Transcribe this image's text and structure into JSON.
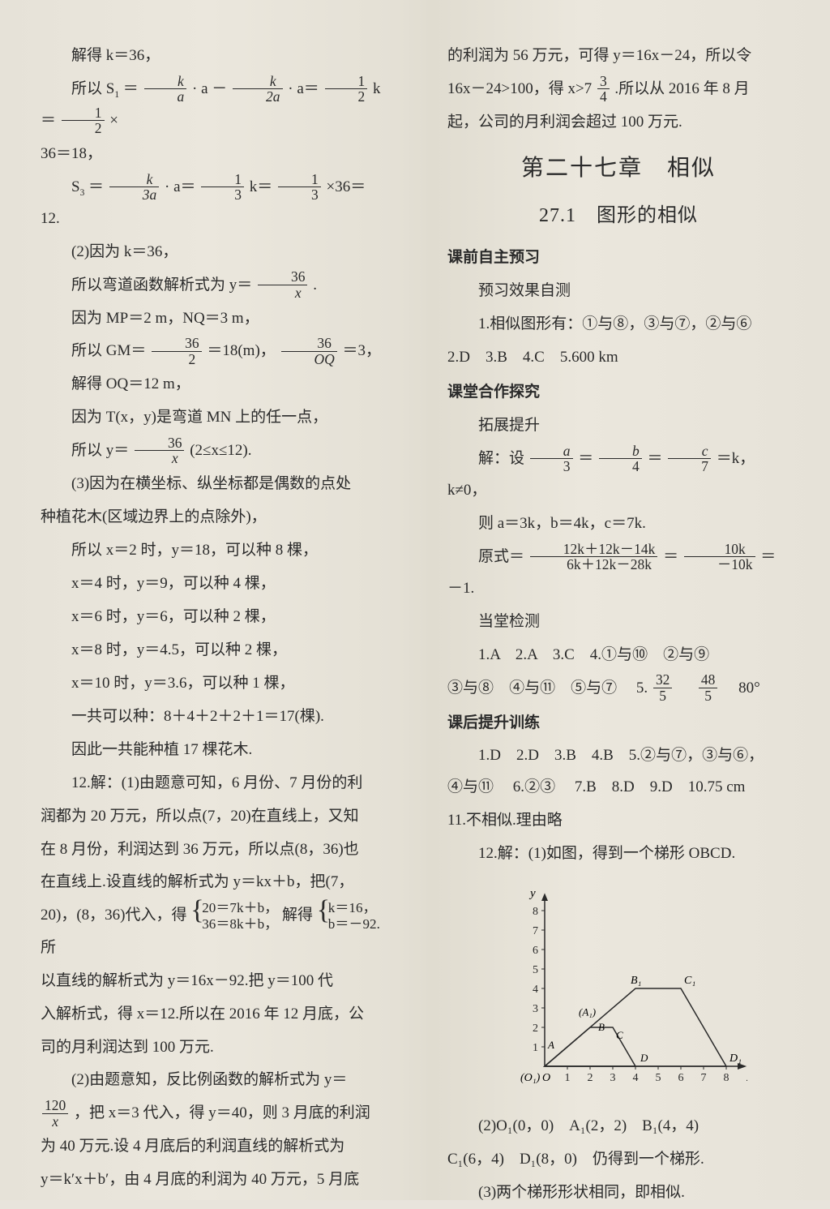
{
  "left": {
    "l1": "解得 k＝36，",
    "l2a": "所以 S",
    "l2b": "＝",
    "l2_f1n": "k",
    "l2_f1d": "a",
    "l2c": "· a －",
    "l2_f2n": "k",
    "l2_f2d": "2a",
    "l2d": "· a＝",
    "l2_f3n": "1",
    "l2_f3d": "2",
    "l2e": "k＝",
    "l2_f4n": "1",
    "l2_f4d": "2",
    "l2f": "×",
    "l3": "36＝18，",
    "l4a": "S",
    "l4b": "＝",
    "l4_f1n": "k",
    "l4_f1d": "3a",
    "l4c": "· a＝",
    "l4_f2n": "1",
    "l4_f2d": "3",
    "l4d": "k＝",
    "l4_f3n": "1",
    "l4_f3d": "3",
    "l4e": "×36＝12.",
    "l5": "(2)因为 k＝36，",
    "l6a": "所以弯道函数解析式为 y＝",
    "l6_fn": "36",
    "l6_fd": "x",
    "l6b": ".",
    "l7": "因为 MP＝2 m，NQ＝3 m，",
    "l8a": "所以 GM＝",
    "l8_f1n": "36",
    "l8_f1d": "2",
    "l8b": "＝18(m)，",
    "l8_f2n": "36",
    "l8_f2d": "OQ",
    "l8c": "＝3，",
    "l9": "解得 OQ＝12 m，",
    "l10": "因为 T(x，y)是弯道 MN 上的任一点，",
    "l11a": "所以 y＝",
    "l11_fn": "36",
    "l11_fd": "x",
    "l11b": "(2≤x≤12).",
    "l12": "(3)因为在横坐标、纵坐标都是偶数的点处",
    "l13": "种植花木(区域边界上的点除外)，",
    "l14": "所以 x＝2 时，y＝18，可以种 8 棵，",
    "l15": "x＝4 时，y＝9，可以种 4 棵，",
    "l16": "x＝6 时，y＝6，可以种 2 棵，",
    "l17": "x＝8 时，y＝4.5，可以种 2 棵，",
    "l18": "x＝10 时，y＝3.6，可以种 1 棵，",
    "l19": "一共可以种：8＋4＋2＋2＋1＝17(棵).",
    "l20": "因此一共能种植 17 棵花木.",
    "l21": "12.解：(1)由题意可知，6 月份、7 月份的利",
    "l22": "润都为 20 万元，所以点(7，20)在直线上，又知",
    "l23": "在 8 月份，利润达到 36 万元，所以点(8，36)也",
    "l24": "在直线上.设直线的解析式为 y＝kx＋b，把(7，",
    "l25a": "20)，(8，36)代入，得",
    "l25s1a": "20＝7k＋b，",
    "l25s1b": "36＝8k＋b，",
    "l25b": "解得",
    "l25s2a": "k＝16，",
    "l25s2b": "b＝－92.",
    "l25c": "所",
    "l26": "以直线的解析式为 y＝16x－92.把 y＝100 代",
    "l27": "入解析式，得 x＝12.所以在 2016 年 12 月底，公",
    "l28": "司的月利润达到 100 万元.",
    "l29": "(2)由题意知，反比例函数的解析式为 y＝",
    "l30_fn": "120",
    "l30_fd": "x",
    "l30a": "，把 x＝3 代入，得 y＝40，则 3 月底的利润",
    "l31": "为 40 万元.设 4 月底后的利润直线的解析式为",
    "l32": "y＝k′x＋b′，由 4 月底的利润为 40 万元，5 月底"
  },
  "right": {
    "r1": "的利润为 56 万元，可得 y＝16x－24，所以令",
    "r2a": "16x－24>100，得 x>7",
    "r2_fn": "3",
    "r2_fd": "4",
    "r2b": ".所以从 2016 年 8 月",
    "r3": "起，公司的月利润会超过 100 万元.",
    "chapter": "第二十七章　相似",
    "section": "27.1　图形的相似",
    "h1": "课前自主预习",
    "h1s": "预习效果自测",
    "r4a": "1.相似图形有：",
    "c1": "①",
    "r4b": "与",
    "c8": "⑧",
    "r4c": "，",
    "c3": "③",
    "r4d": "与",
    "c7": "⑦",
    "r4e": "，",
    "c2": "②",
    "r4f": "与",
    "c6": "⑥",
    "r5": "2.D　3.B　4.C　5.600 km",
    "h2": "课堂合作探究",
    "h2s": "拓展提升",
    "r6a": "解：设",
    "r6_f1n": "a",
    "r6_f1d": "3",
    "r6b": "＝",
    "r6_f2n": "b",
    "r6_f2d": "4",
    "r6c": "＝",
    "r6_f3n": "c",
    "r6_f3d": "7",
    "r6d": "＝k，k≠0，",
    "r7": "则 a＝3k，b＝4k，c＝7k.",
    "r8a": "原式＝",
    "r8_f1n": "12k＋12k－14k",
    "r8_f1d": "6k＋12k－28k",
    "r8b": "＝",
    "r8_f2n": "10k",
    "r8_f2d": "－10k",
    "r8c": "＝－1.",
    "h2s2": "当堂检测",
    "r9a": "1.A　2.A　3.C　4.",
    "r9c1": "①",
    "r9b": "与",
    "r9c10": "⑩",
    "r9sp": "　",
    "r9c2": "②",
    "r9c": "与",
    "r9c9": "⑨",
    "r10a": "",
    "r10c3": "③",
    "r10b": "与",
    "r10c8": "⑧",
    "r10sp": "　",
    "r10c4": "④",
    "r10c": "与",
    "r10c11": "⑪",
    "r10sp2": "　",
    "r10c5": "⑤",
    "r10d": "与",
    "r10c7": "⑦",
    "r10e": "　5.",
    "r10_f1n": "32",
    "r10_f1d": "5",
    "r10sp3": "　",
    "r10_f2n": "48",
    "r10_f2d": "5",
    "r10f": "　80°",
    "h3": "课后提升训练",
    "r11a": "1.D　2.D　3.B　4.B　5.",
    "r11c2": "②",
    "r11b": "与",
    "r11c7": "⑦",
    "r11c": "，",
    "r11c3": "③",
    "r11d": "与",
    "r11c6": "⑥",
    "r11e": "，",
    "r12a": "",
    "r12c4": "④",
    "r12b": "与",
    "r12c11": "⑪",
    "r12c": "　6.",
    "r12c2": "②",
    "r12c3": "③",
    "r12d": "　7.B　8.D　9.D　10.75 cm",
    "r13": "11.不相似.理由略",
    "r14": "12.解：(1)如图，得到一个梯形 OBCD.",
    "graph": {
      "y_ticks": [
        "8",
        "7",
        "6",
        "5",
        "4",
        "3",
        "2",
        "1"
      ],
      "x_ticks": [
        "1",
        "2",
        "3",
        "4",
        "5",
        "6",
        "7",
        "8"
      ],
      "labels": {
        "O1": "(O₁)",
        "O": "O",
        "x": "x",
        "y": "y",
        "A": "A",
        "A1": "(A₁)",
        "B": "B",
        "B1": "B₁",
        "C": "C",
        "C1": "C₁",
        "D": "D",
        "D1": "D₁"
      },
      "axis_color": "#2a2a2a",
      "grid_color": "#2a2a2a",
      "outer_trap": [
        [
          0,
          0
        ],
        [
          4,
          4
        ],
        [
          6,
          4
        ],
        [
          8,
          0
        ]
      ],
      "inner_trap": [
        [
          0,
          0
        ],
        [
          2,
          2
        ],
        [
          3,
          2
        ],
        [
          4,
          0
        ]
      ],
      "x_range": [
        0,
        9
      ],
      "y_range": [
        0,
        9
      ]
    },
    "r15": "(2)O₁(0，0)　A₁(2，2)　B₁(4，4)",
    "r16": "C₁(6，4)　D₁(8，0)　仍得到一个梯形.",
    "r17": "(3)两个梯形形状相同，即相似."
  }
}
